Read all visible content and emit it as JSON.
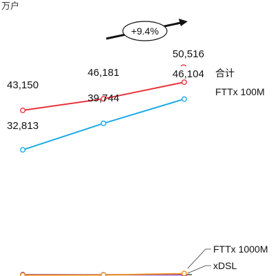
{
  "chart_data": {
    "type": "line",
    "unit_label": "万户",
    "categories": [
      "",
      "",
      ""
    ],
    "growth_badge": "+9.4%",
    "series": [
      {
        "name": "合计",
        "color": "#e8313a",
        "values": [
          43150,
          46181,
          50516
        ],
        "labels": [
          "43,150",
          "46,181",
          "50,516"
        ]
      },
      {
        "name": "FTTx 100M",
        "color": "#1aa9e8",
        "values": [
          32813,
          39744,
          46104
        ],
        "labels": [
          "32,813",
          "39,744",
          "46,104"
        ]
      },
      {
        "name": "FTTx 1000M",
        "color": "#f0901a",
        "values": [
          60,
          90,
          450
        ],
        "labels": [
          "",
          "",
          ""
        ]
      },
      {
        "name": "xDSL",
        "color": "#8e4fc6",
        "values": [
          200,
          150,
          120
        ],
        "labels": [
          "",
          "",
          ""
        ]
      }
    ]
  }
}
